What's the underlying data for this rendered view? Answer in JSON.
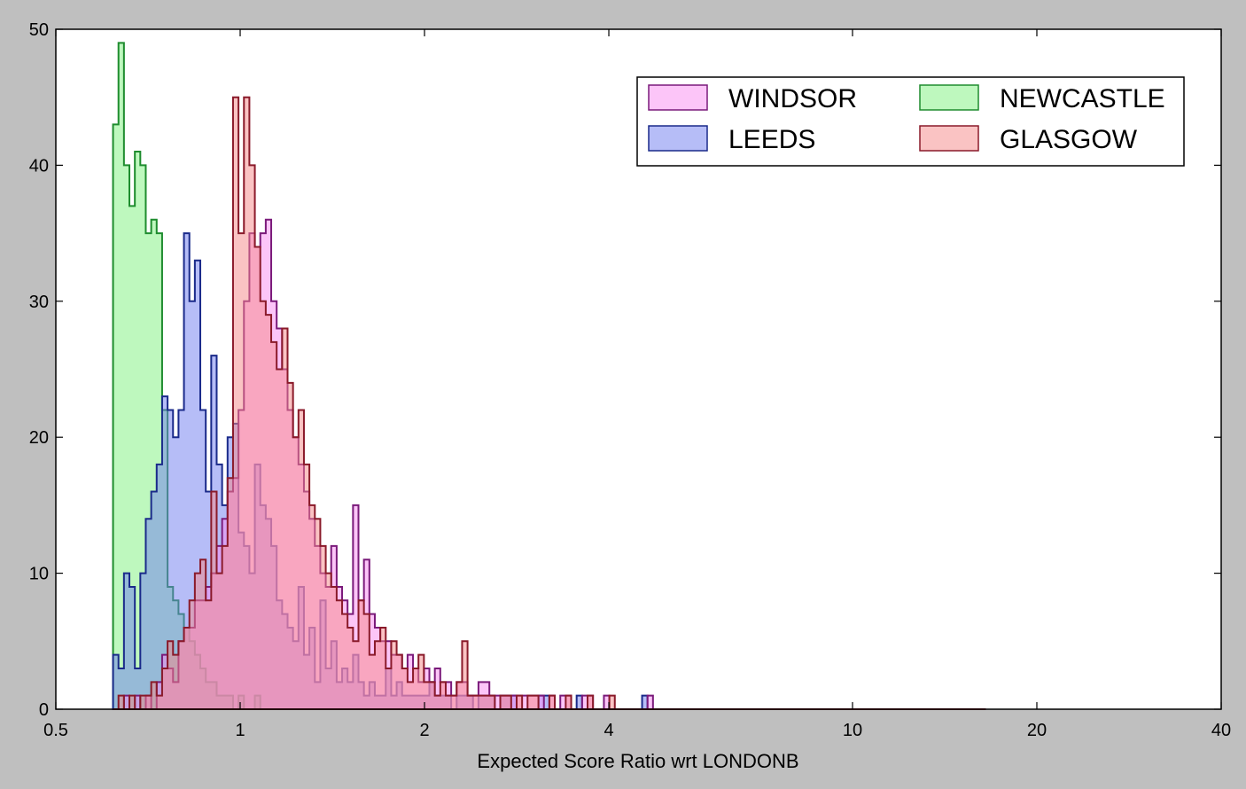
{
  "chart_data": {
    "type": "histogram",
    "title": "",
    "xlabel": "Expected Score Ratio wrt LONDONB",
    "ylabel": "",
    "xscale": "log",
    "xlim": [
      0.5,
      40
    ],
    "ylim": [
      0,
      50
    ],
    "xticks": [
      {
        "value": 0.5,
        "label": "0.5"
      },
      {
        "value": 1,
        "label": "1"
      },
      {
        "value": 2,
        "label": "2"
      },
      {
        "value": 4,
        "label": "4"
      },
      {
        "value": 10,
        "label": "10"
      },
      {
        "value": 20,
        "label": "20"
      },
      {
        "value": 40,
        "label": "40"
      }
    ],
    "yticks": [
      {
        "value": 0,
        "label": "0"
      },
      {
        "value": 10,
        "label": "10"
      },
      {
        "value": 20,
        "label": "20"
      },
      {
        "value": 30,
        "label": "30"
      },
      {
        "value": 40,
        "label": "40"
      },
      {
        "value": 50,
        "label": "50"
      }
    ],
    "bins": {
      "start": 0.62,
      "end": 16.5,
      "count": 160
    },
    "legend": {
      "placement": "top-right",
      "columns": 2
    },
    "series": [
      {
        "name": "NEWCASTLE",
        "fill": "#7ef27e",
        "edge": "#1e8c2e",
        "counts": [
          43,
          49,
          40,
          37,
          41,
          40,
          35,
          36,
          35,
          22,
          9,
          8,
          7,
          6,
          5,
          4,
          3,
          2,
          2,
          1,
          1,
          1,
          0,
          1,
          0,
          0,
          1,
          0,
          0,
          0,
          0,
          0,
          0,
          0,
          0,
          0,
          0,
          0,
          0,
          0,
          0,
          0,
          0,
          0,
          0,
          0,
          0,
          0,
          0,
          0,
          0,
          0,
          0,
          0,
          0,
          0,
          0,
          0,
          0,
          0,
          0,
          0,
          0,
          0,
          0,
          0,
          0,
          0,
          0,
          0,
          0,
          0,
          0,
          0,
          0,
          0,
          0,
          0,
          0,
          0,
          0,
          0,
          0,
          0,
          0,
          0,
          0,
          0,
          0,
          0,
          0,
          0,
          0,
          0,
          0,
          0,
          0,
          0,
          0,
          0,
          0,
          0,
          0,
          0,
          0,
          0,
          0,
          0,
          0,
          0,
          0,
          0,
          0,
          0,
          0,
          0,
          0,
          0,
          0,
          0,
          0,
          0,
          0,
          0,
          0,
          0,
          0,
          0,
          0,
          0,
          0,
          0,
          0,
          0,
          0,
          0,
          0,
          0,
          0,
          0,
          0,
          0,
          0,
          0,
          0,
          0,
          0,
          0,
          0,
          0,
          0,
          0,
          0,
          0,
          0,
          0,
          0,
          0,
          0,
          0
        ]
      },
      {
        "name": "LEEDS",
        "fill": "#6e7cf0",
        "edge": "#1a2a8a",
        "counts": [
          4,
          3,
          10,
          9,
          3,
          10,
          14,
          16,
          18,
          23,
          22,
          20,
          22,
          35,
          30,
          33,
          22,
          16,
          26,
          18,
          15,
          20,
          21,
          13,
          12,
          10,
          18,
          15,
          14,
          12,
          8,
          7,
          6,
          5,
          9,
          4,
          6,
          2,
          8,
          3,
          5,
          2,
          3,
          2,
          4,
          2,
          1,
          2,
          1,
          1,
          3,
          1,
          2,
          1,
          1,
          1,
          1,
          1,
          2,
          1,
          1,
          1,
          0,
          1,
          1,
          1,
          0,
          1,
          1,
          1,
          0,
          1,
          1,
          1,
          0,
          0,
          0,
          0,
          1,
          1,
          0,
          0,
          0,
          0,
          0,
          1,
          0,
          0,
          0,
          0,
          0,
          0,
          0,
          0,
          0,
          0,
          0,
          1,
          0,
          0,
          0,
          0,
          0,
          0,
          0,
          0,
          0,
          0,
          0,
          0,
          0,
          0,
          0,
          0,
          0,
          0,
          0,
          0,
          0,
          0,
          0,
          0,
          0,
          0,
          0,
          0,
          0,
          0,
          0,
          0,
          0,
          0,
          0,
          0,
          0,
          0,
          0,
          0,
          0,
          0,
          0,
          0,
          0,
          0,
          0,
          0,
          0,
          0,
          0,
          0,
          0,
          0,
          0,
          0,
          0,
          0,
          0,
          0,
          0,
          0
        ]
      },
      {
        "name": "WINDSOR",
        "fill": "#f98cf2",
        "edge": "#7a1a7a",
        "counts": [
          0,
          0,
          1,
          0,
          1,
          0,
          1,
          0,
          2,
          4,
          3,
          2,
          5,
          6,
          6,
          8,
          8,
          9,
          10,
          12,
          14,
          16,
          17,
          22,
          30,
          35,
          34,
          35,
          36,
          30,
          28,
          25,
          22,
          20,
          18,
          16,
          14,
          12,
          10,
          9,
          12,
          9,
          8,
          7,
          15,
          8,
          11,
          7,
          6,
          5,
          5,
          4,
          4,
          3,
          4,
          3,
          2,
          3,
          2,
          3,
          2,
          2,
          1,
          2,
          2,
          1,
          1,
          2,
          2,
          1,
          1,
          1,
          1,
          1,
          1,
          1,
          1,
          1,
          1,
          0,
          1,
          0,
          1,
          1,
          0,
          0,
          1,
          1,
          0,
          0,
          1,
          0,
          0,
          0,
          0,
          0,
          0,
          0,
          1,
          0,
          0,
          0,
          0,
          0,
          0,
          0,
          0,
          0,
          0,
          0,
          0,
          0,
          0,
          0,
          0,
          0,
          0,
          0,
          0,
          0,
          0,
          0,
          0,
          0,
          0,
          0,
          0,
          0,
          0,
          0,
          0,
          0,
          0,
          0,
          0,
          0,
          0,
          0,
          0,
          0,
          0,
          0,
          0,
          0,
          0,
          0,
          0,
          0,
          0,
          0,
          0,
          0,
          0,
          0,
          0,
          0,
          0,
          0,
          0,
          0
        ]
      },
      {
        "name": "GLASGOW",
        "fill": "#f58888",
        "edge": "#8a1a2a",
        "counts": [
          0,
          1,
          0,
          1,
          0,
          1,
          1,
          2,
          1,
          3,
          5,
          4,
          5,
          6,
          8,
          10,
          11,
          8,
          16,
          10,
          12,
          17,
          45,
          35,
          45,
          40,
          34,
          30,
          29,
          27,
          25,
          28,
          24,
          20,
          22,
          18,
          15,
          14,
          12,
          10,
          9,
          8,
          7,
          6,
          5,
          8,
          7,
          4,
          5,
          6,
          3,
          5,
          4,
          3,
          2,
          3,
          4,
          2,
          2,
          1,
          2,
          1,
          1,
          2,
          5,
          1,
          1,
          1,
          1,
          1,
          0,
          1,
          1,
          0,
          1,
          0,
          1,
          1,
          0,
          0,
          1,
          0,
          0,
          1,
          0,
          0,
          0,
          1,
          0,
          0,
          0,
          1,
          0,
          0,
          0,
          0,
          0,
          0,
          0,
          0,
          0,
          0,
          0,
          0,
          0,
          0,
          0,
          0,
          0,
          0,
          0,
          0,
          0,
          0,
          0,
          0,
          0,
          0,
          0,
          0,
          0,
          0,
          0,
          0,
          0,
          0,
          0,
          0,
          0,
          0,
          0,
          0,
          0,
          0,
          0,
          0,
          0,
          0,
          0,
          0,
          0,
          0,
          0,
          0,
          0,
          0,
          0,
          0,
          0,
          0,
          0,
          0,
          0,
          0,
          0,
          0,
          0,
          0,
          0,
          0
        ]
      }
    ]
  }
}
